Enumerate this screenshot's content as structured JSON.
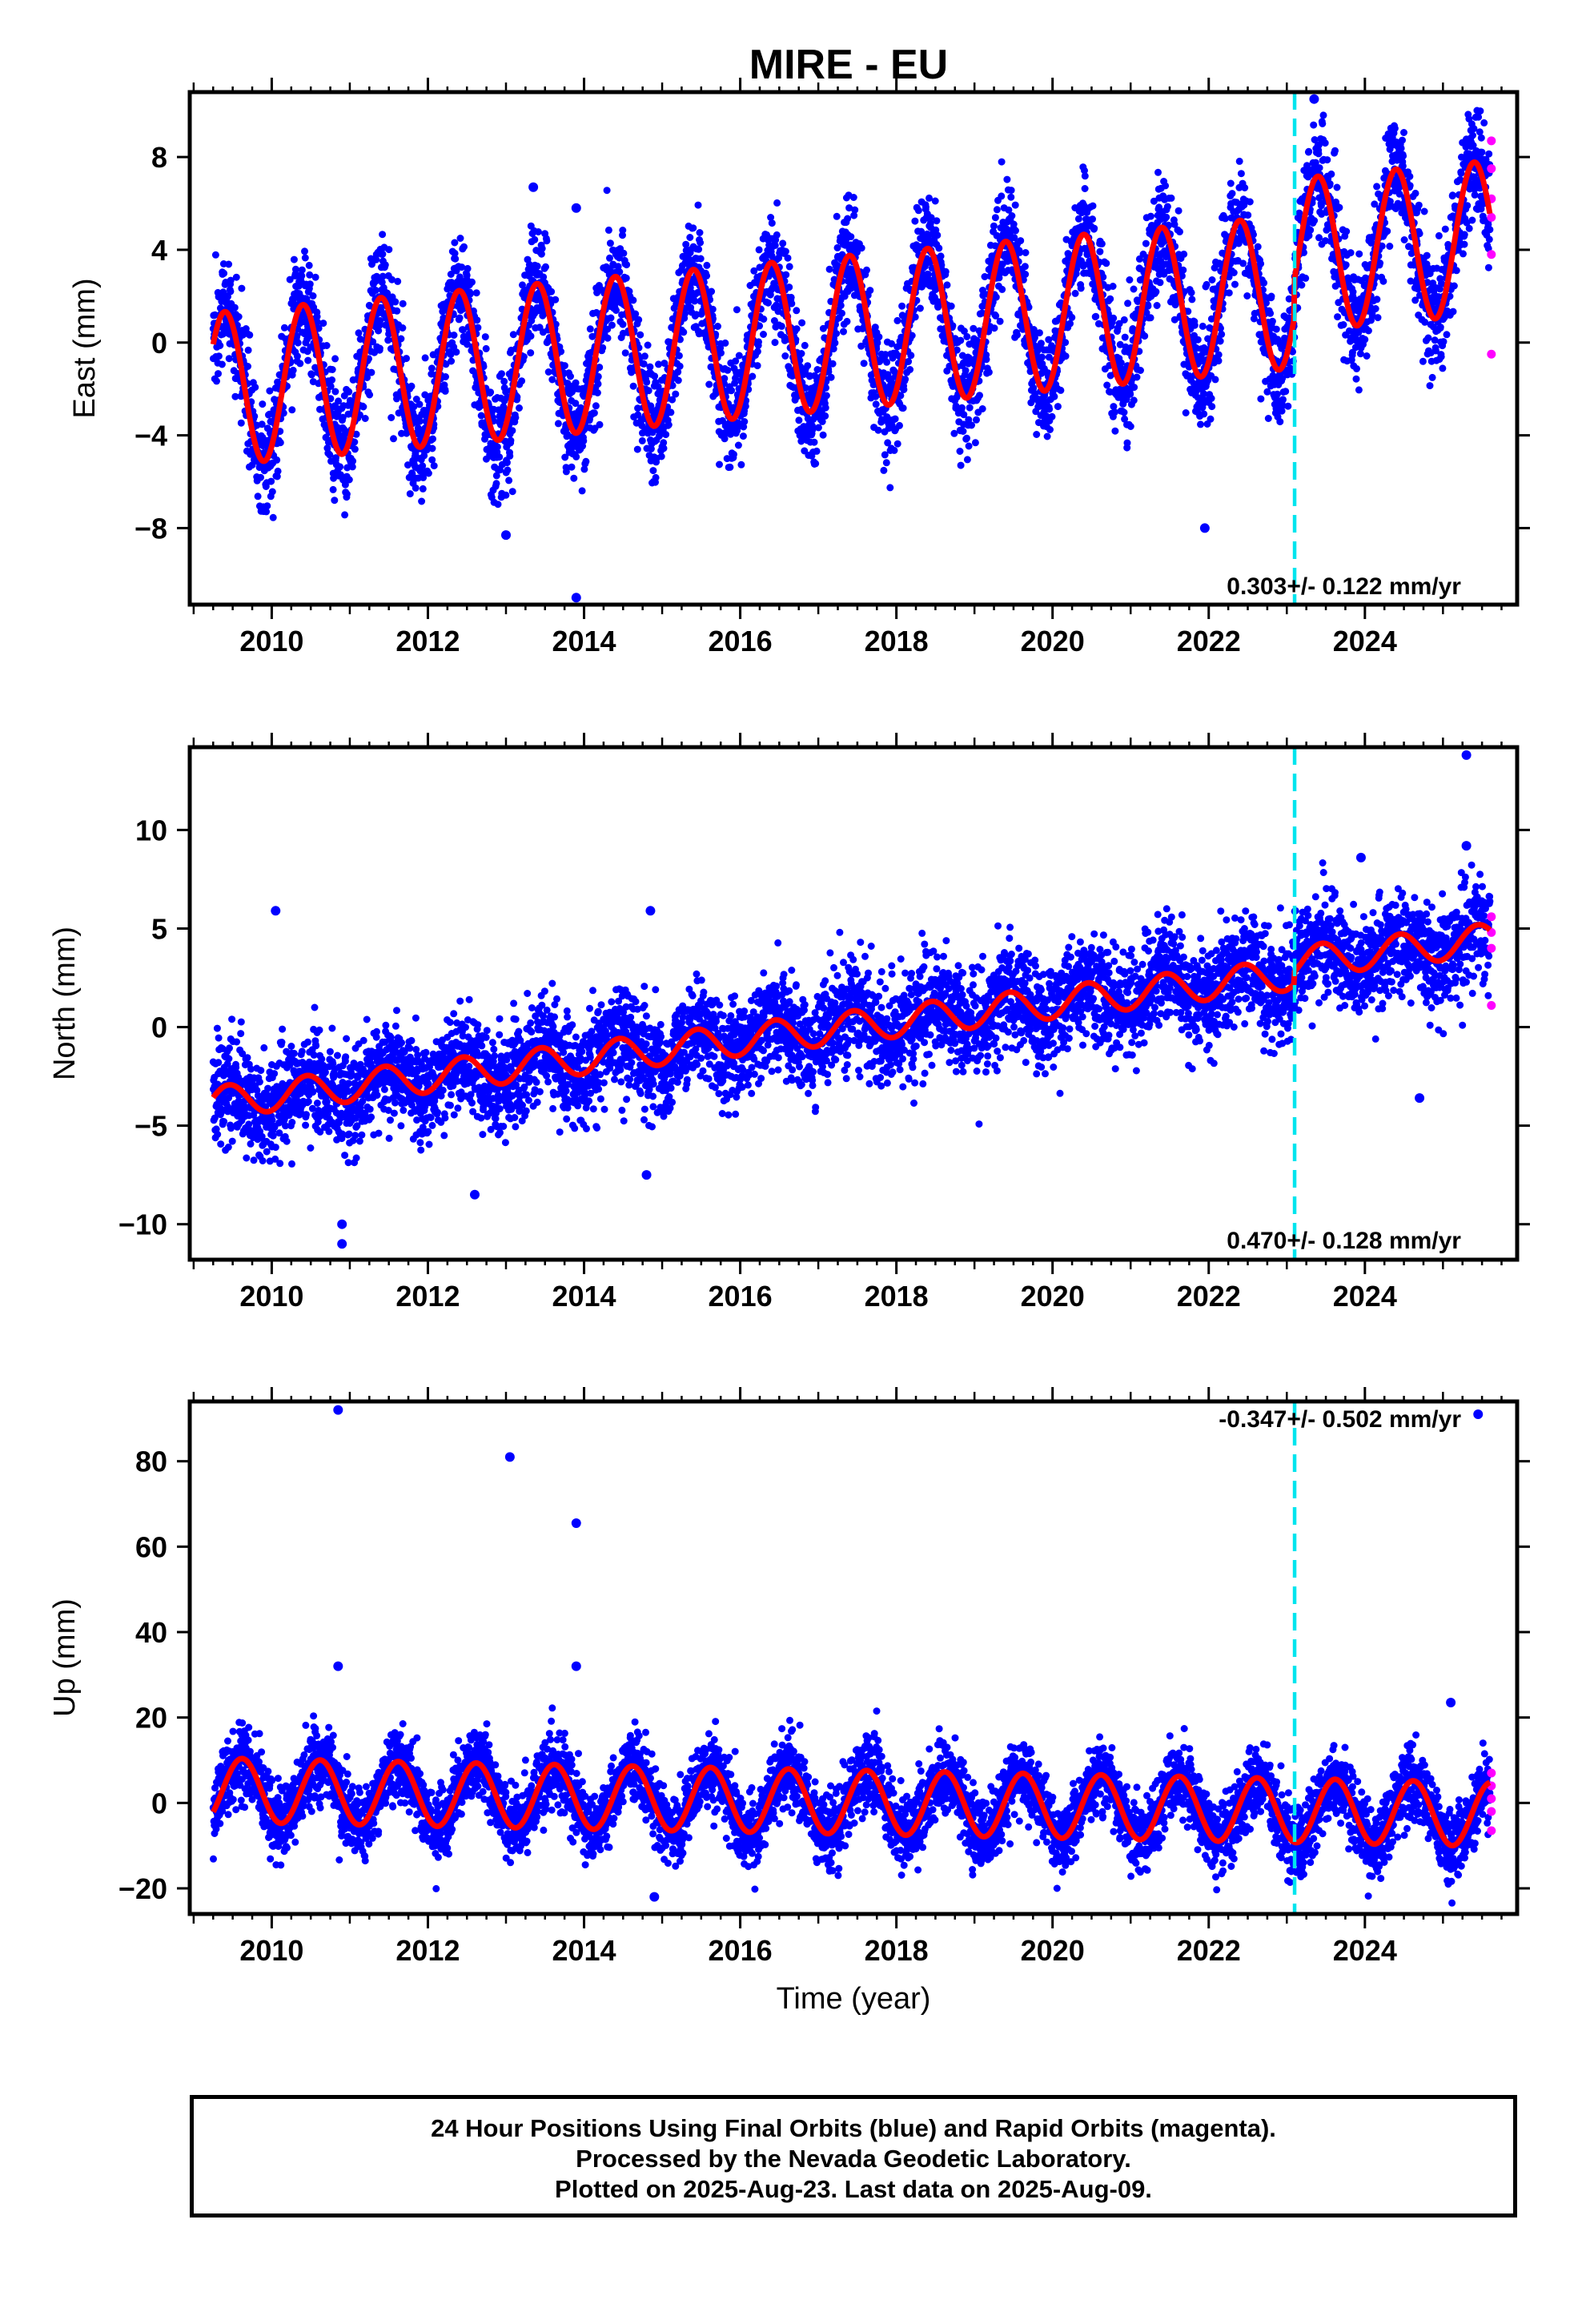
{
  "title": "MIRE - EU",
  "footer": {
    "line1": "24 Hour Positions Using Final Orbits (blue) and Rapid Orbits (magenta).",
    "line2": "Processed by the Nevada Geodetic Laboratory.",
    "line3": "Plotted on 2025-Aug-23. Last data on 2025-Aug-09."
  },
  "colors": {
    "final_orbits": "#0000ff",
    "rapid_orbits": "#ff00ff",
    "model_fit": "#ff0000",
    "equipment_change": "#00e5ee",
    "frame": "#000000"
  },
  "chart_data": [
    {
      "type": "scatter",
      "name": "east",
      "ylabel": "East (mm)",
      "xlim": [
        2008.95,
        2025.95
      ],
      "ylim": [
        -11.3,
        10.8
      ],
      "xticks": [
        2010,
        2012,
        2014,
        2016,
        2018,
        2020,
        2022,
        2024
      ],
      "xtick_labels": [
        "2010",
        "2012",
        "2014",
        "2016",
        "2018",
        "2020",
        "2022",
        "2024"
      ],
      "yticks": [
        -8,
        -4,
        0,
        4,
        8
      ],
      "ytick_labels": [
        "−8",
        "−4",
        "0",
        "4",
        "8"
      ],
      "rate_text": "0.303+/- 0.122 mm/yr",
      "equipment_change_year": 2023.1,
      "data_span": [
        2009.25,
        2025.6
      ],
      "model": {
        "offset": -2.0,
        "trend": 0.303,
        "ref_year": 2009.3,
        "amplitude": 3.3,
        "amplitude_growth": 0.0,
        "phase_peak": 0.4,
        "post_change_offset": 1.6
      },
      "noise_sd": 1.2,
      "point_count": 5600,
      "outliers": [
        [
          2013.35,
          6.7
        ],
        [
          2013.9,
          5.8
        ],
        [
          2013.0,
          -8.3
        ],
        [
          2013.9,
          -11.0
        ],
        [
          2021.95,
          -8.0
        ],
        [
          2023.35,
          10.5
        ]
      ],
      "rapid_points": [
        [
          2025.62,
          8.7
        ],
        [
          2025.62,
          7.5
        ],
        [
          2025.62,
          6.2
        ],
        [
          2025.62,
          5.4
        ],
        [
          2025.62,
          3.8
        ],
        [
          2025.62,
          -0.5
        ]
      ]
    },
    {
      "type": "scatter",
      "name": "north",
      "ylabel": "North (mm)",
      "xlim": [
        2008.95,
        2025.95
      ],
      "ylim": [
        -11.8,
        14.2
      ],
      "xticks": [
        2010,
        2012,
        2014,
        2016,
        2018,
        2020,
        2022,
        2024
      ],
      "xtick_labels": [
        "2010",
        "2012",
        "2014",
        "2016",
        "2018",
        "2020",
        "2022",
        "2024"
      ],
      "yticks": [
        -10,
        -5,
        0,
        5,
        10
      ],
      "ytick_labels": [
        "−10",
        "−5",
        "0",
        "5",
        "10"
      ],
      "rate_text": "0.470+/- 0.128 mm/yr",
      "equipment_change_year": 2023.1,
      "data_span": [
        2009.25,
        2025.6
      ],
      "model": {
        "offset": -3.8,
        "trend": 0.47,
        "ref_year": 2009.3,
        "amplitude": 0.8,
        "amplitude_growth": 0.0,
        "phase_peak": 0.45,
        "post_change_offset": 0.6
      },
      "noise_sd": 1.3,
      "point_count": 5600,
      "outliers": [
        [
          2010.05,
          5.9
        ],
        [
          2014.85,
          5.9
        ],
        [
          2010.9,
          -10.0
        ],
        [
          2010.9,
          -11.0
        ],
        [
          2014.8,
          -7.5
        ],
        [
          2012.6,
          -8.5
        ],
        [
          2024.7,
          -3.6
        ],
        [
          2025.3,
          13.8
        ],
        [
          2025.3,
          9.2
        ],
        [
          2023.95,
          8.6
        ]
      ],
      "rapid_points": [
        [
          2025.62,
          5.6
        ],
        [
          2025.62,
          4.8
        ],
        [
          2025.62,
          4.0
        ],
        [
          2025.62,
          1.1
        ]
      ]
    },
    {
      "type": "scatter",
      "name": "up",
      "ylabel": "Up (mm)",
      "xlabel": "Time (year)",
      "xlim": [
        2008.95,
        2025.95
      ],
      "ylim": [
        -26,
        94
      ],
      "xticks": [
        2010,
        2012,
        2014,
        2016,
        2018,
        2020,
        2022,
        2024
      ],
      "xtick_labels": [
        "2010",
        "2012",
        "2014",
        "2016",
        "2018",
        "2020",
        "2022",
        "2024"
      ],
      "yticks": [
        -20,
        0,
        20,
        40,
        60,
        80
      ],
      "ytick_labels": [
        "−20",
        "0",
        "20",
        "40",
        "60",
        "80"
      ],
      "rate_text": "-0.347+/- 0.502 mm/yr",
      "equipment_change_year": 2023.1,
      "data_span": [
        2009.25,
        2025.6
      ],
      "model": {
        "offset": 3.0,
        "trend": -0.347,
        "ref_year": 2009.3,
        "amplitude": 7.5,
        "amplitude_growth": 0.0,
        "phase_peak": 0.62,
        "post_change_offset": 0
      },
      "noise_sd": 4.2,
      "point_count": 5600,
      "outliers": [
        [
          2010.85,
          92
        ],
        [
          2013.05,
          81
        ],
        [
          2013.9,
          65.5
        ],
        [
          2013.9,
          32
        ],
        [
          2010.85,
          32
        ],
        [
          2014.9,
          -22
        ],
        [
          2025.45,
          91
        ],
        [
          2025.1,
          23.5
        ]
      ],
      "rapid_points": [
        [
          2025.62,
          7.0
        ],
        [
          2025.62,
          4.0
        ],
        [
          2025.62,
          1.0
        ],
        [
          2025.62,
          -2.0
        ],
        [
          2025.62,
          -6.5
        ]
      ]
    }
  ]
}
